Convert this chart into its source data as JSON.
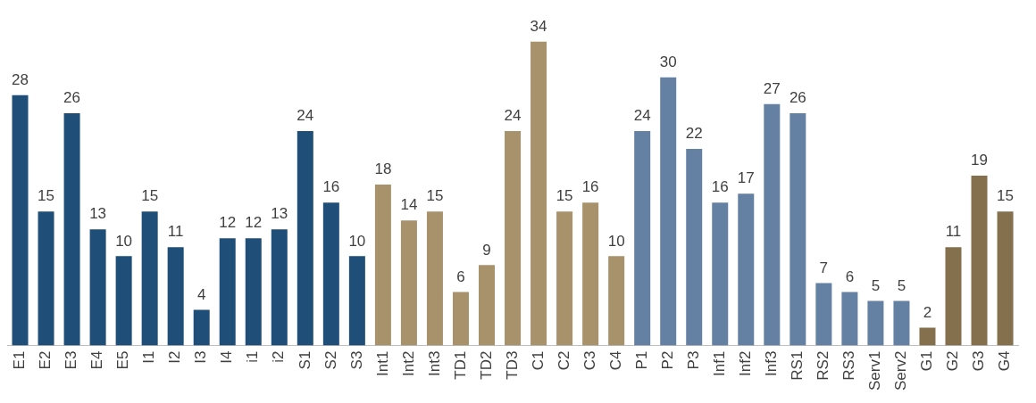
{
  "chart_data": {
    "type": "bar",
    "categories": [
      "E1",
      "E2",
      "E3",
      "E4",
      "E5",
      "I1",
      "I2",
      "I3",
      "I4",
      "i1",
      "i2",
      "S1",
      "S2",
      "S3",
      "Int1",
      "Int2",
      "Int3",
      "TD1",
      "TD2",
      "TD3",
      "C1",
      "C2",
      "C3",
      "C4",
      "P1",
      "P2",
      "P3",
      "Inf1",
      "Inf2",
      "Inf3",
      "RS1",
      "RS2",
      "RS3",
      "Serv1",
      "Serv2",
      "G1",
      "G2",
      "G3",
      "G4"
    ],
    "values": [
      28,
      15,
      26,
      13,
      10,
      15,
      11,
      4,
      12,
      12,
      13,
      24,
      16,
      10,
      18,
      14,
      15,
      6,
      9,
      24,
      34,
      15,
      16,
      10,
      24,
      30,
      22,
      16,
      17,
      27,
      26,
      7,
      6,
      5,
      5,
      2,
      11,
      19,
      15
    ],
    "colors": [
      "#1f4e79",
      "#1f4e79",
      "#1f4e79",
      "#1f4e79",
      "#1f4e79",
      "#1f4e79",
      "#1f4e79",
      "#1f4e79",
      "#1f4e79",
      "#1f4e79",
      "#1f4e79",
      "#1f4e79",
      "#1f4e79",
      "#1f4e79",
      "#a8926b",
      "#a8926b",
      "#a8926b",
      "#a8926b",
      "#a8926b",
      "#a8926b",
      "#a8926b",
      "#a8926b",
      "#a8926b",
      "#a8926b",
      "#6480a3",
      "#6480a3",
      "#6480a3",
      "#6480a3",
      "#6480a3",
      "#6480a3",
      "#6480a3",
      "#6480a3",
      "#6480a3",
      "#6480a3",
      "#6480a3",
      "#85704d",
      "#85704d",
      "#85704d",
      "#85704d"
    ],
    "data_labels": true,
    "grid": false,
    "legend": false
  }
}
